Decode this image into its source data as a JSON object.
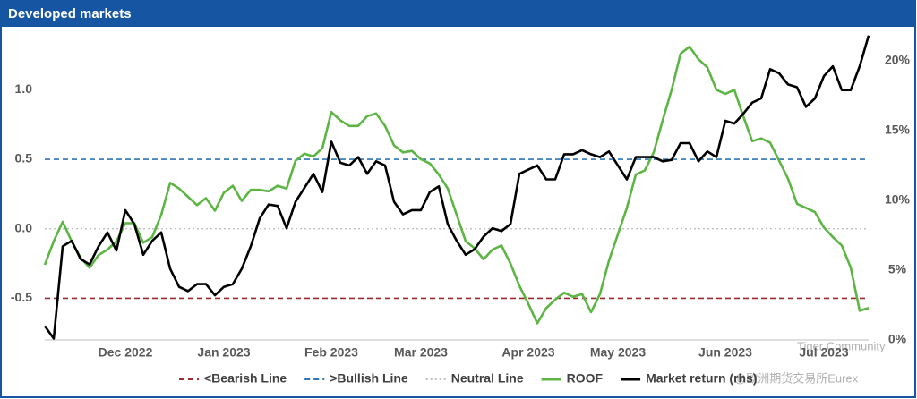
{
  "chart_data": {
    "type": "line",
    "title": "Developed markets",
    "categories": [
      null,
      null,
      null,
      null,
      null,
      null,
      null,
      null,
      null,
      "Dec 2022",
      null,
      null,
      null,
      null,
      null,
      null,
      null,
      null,
      null,
      null,
      "Jan 2023",
      null,
      null,
      null,
      null,
      null,
      null,
      null,
      null,
      null,
      null,
      null,
      "Feb 2023",
      null,
      null,
      null,
      null,
      null,
      null,
      null,
      null,
      null,
      "Mar 2023",
      null,
      null,
      null,
      null,
      null,
      null,
      null,
      null,
      null,
      null,
      null,
      "Apr 2023",
      null,
      null,
      null,
      null,
      null,
      null,
      null,
      null,
      null,
      "May 2023",
      null,
      null,
      null,
      null,
      null,
      null,
      null,
      null,
      null,
      null,
      null,
      "Jun 2023",
      null,
      null,
      null,
      null,
      null,
      null,
      null,
      null,
      null,
      null,
      "Jul 2023",
      null,
      null,
      null,
      null,
      null
    ],
    "ylim": [
      -0.8,
      1.44
    ],
    "yticks": [
      -0.5,
      {
        "value": 0,
        "label": "0.0"
      },
      0.5,
      {
        "value": 1,
        "label": "1.0"
      }
    ],
    "y2lim": [
      0,
      22.3
    ],
    "y2ticks": [
      {
        "value": 0,
        "label": "0%"
      },
      {
        "value": 5,
        "label": "5%"
      },
      {
        "value": 10,
        "label": "10%"
      },
      {
        "value": 15,
        "label": "15%"
      },
      {
        "value": 20,
        "label": "20%"
      }
    ],
    "reference_lines": [
      {
        "name": "<Bearish Line",
        "value": -0.5,
        "color": "#9b2d30",
        "style": "dashed"
      },
      {
        "name": ">Bullish Line",
        "value": 0.5,
        "color": "#2e75b6",
        "style": "dashed"
      },
      {
        "name": "Neutral Line",
        "value": 0,
        "color": "#bfbfbf",
        "style": "dotted"
      }
    ],
    "series": [
      {
        "name": "ROOF",
        "color": "#5db544",
        "axis": "y",
        "values": [
          -0.26,
          -0.09,
          0.05,
          -0.09,
          -0.21,
          -0.28,
          -0.19,
          -0.15,
          -0.09,
          0.04,
          0.04,
          -0.1,
          -0.06,
          0.1,
          0.33,
          0.29,
          0.23,
          0.17,
          0.22,
          0.13,
          0.26,
          0.31,
          0.2,
          0.28,
          0.28,
          0.27,
          0.31,
          0.29,
          0.49,
          0.54,
          0.52,
          0.58,
          0.84,
          0.78,
          0.74,
          0.74,
          0.81,
          0.83,
          0.74,
          0.6,
          0.55,
          0.56,
          0.5,
          0.47,
          0.39,
          0.29,
          0.1,
          -0.09,
          -0.14,
          -0.22,
          -0.15,
          -0.12,
          -0.25,
          -0.41,
          -0.54,
          -0.68,
          -0.57,
          -0.51,
          -0.46,
          -0.49,
          -0.47,
          -0.6,
          -0.47,
          -0.23,
          -0.04,
          0.15,
          0.39,
          0.42,
          0.55,
          0.78,
          1.0,
          1.26,
          1.31,
          1.22,
          1.16,
          1.0,
          0.97,
          1.0,
          0.81,
          0.63,
          0.65,
          0.62,
          0.49,
          0.36,
          0.18,
          0.15,
          0.12,
          0.01,
          -0.06,
          -0.12,
          -0.28,
          -0.59,
          -0.57
        ]
      },
      {
        "name": "Market return (rhs)",
        "color": "#000000",
        "axis": "y2",
        "values": [
          1.0,
          0.1,
          6.7,
          7.1,
          5.8,
          5.4,
          6.7,
          7.7,
          6.4,
          9.3,
          8.3,
          6.1,
          7.1,
          7.7,
          5.1,
          3.8,
          3.5,
          4.0,
          4.0,
          3.2,
          3.8,
          4.0,
          5.1,
          6.7,
          8.7,
          9.7,
          9.6,
          8.0,
          9.9,
          10.9,
          11.9,
          10.6,
          14.2,
          12.7,
          12.5,
          13.1,
          11.9,
          12.8,
          12.5,
          9.9,
          9.0,
          9.3,
          9.3,
          10.6,
          11.0,
          8.3,
          7.1,
          6.1,
          6.5,
          7.4,
          8.0,
          7.8,
          8.3,
          11.9,
          12.2,
          12.5,
          11.5,
          11.5,
          13.3,
          13.3,
          13.6,
          13.3,
          13.1,
          13.5,
          12.5,
          11.5,
          13.1,
          13.1,
          13.1,
          12.8,
          12.9,
          14.1,
          14.1,
          12.8,
          13.5,
          13.1,
          15.7,
          15.5,
          16.2,
          17.0,
          17.3,
          19.4,
          19.1,
          18.3,
          18.1,
          16.7,
          17.3,
          18.9,
          19.6,
          17.9,
          17.9,
          19.6,
          21.8
        ]
      }
    ],
    "watermarks": [
      "Tiger Community",
      "@欧洲期货交易所Eurex"
    ]
  }
}
